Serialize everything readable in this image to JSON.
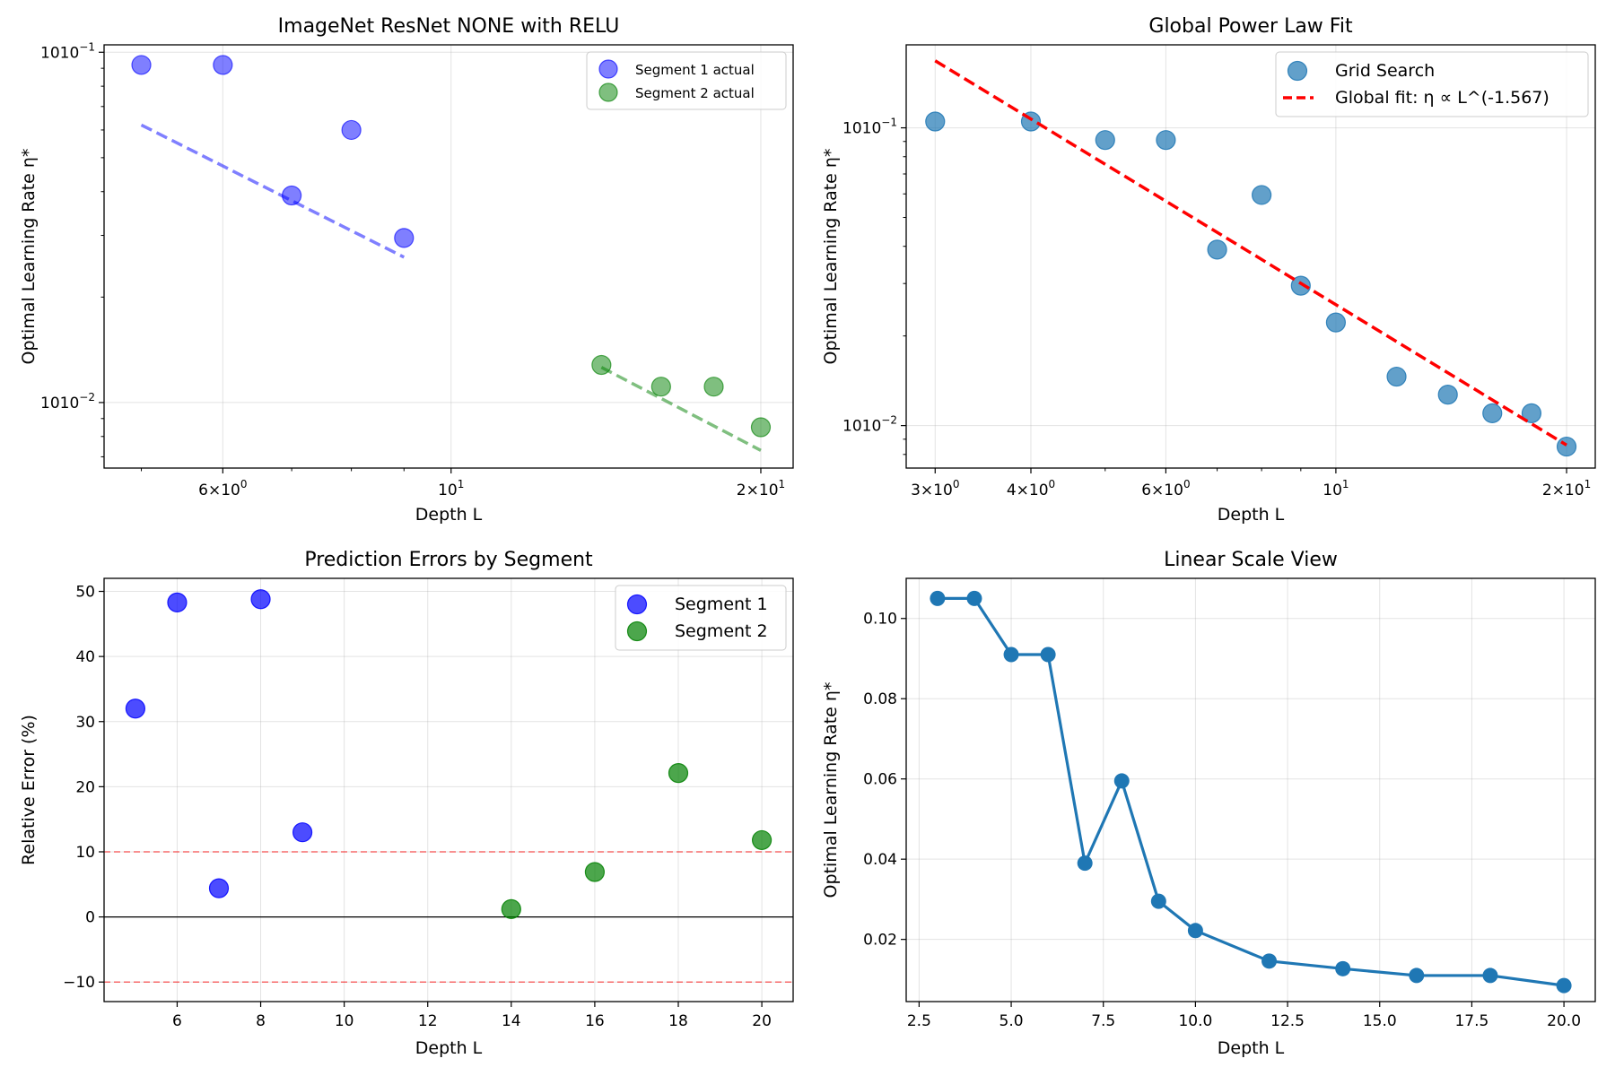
{
  "chart_data": [
    {
      "type": "scatter",
      "title": "ImageNet ResNet NONE with RELU",
      "xlabel": "Depth L",
      "ylabel": "Optimal Learning Rate η*",
      "xscale": "log",
      "yscale": "log",
      "xlim": [
        4.6,
        21.5
      ],
      "ylim": [
        0.0065,
        0.105
      ],
      "grid": true,
      "legend": "top-right",
      "xticks": [
        {
          "value": 6,
          "base": "6",
          "sym": "×",
          "exp_base": "10",
          "exp": "0"
        },
        {
          "value": 10,
          "base": "",
          "sym": "",
          "exp_base": "10",
          "exp": "1"
        },
        {
          "value": 20,
          "base": "2",
          "sym": "×",
          "exp_base": "10",
          "exp": "1"
        }
      ],
      "yticks": [
        {
          "value": 0.01,
          "base": "10",
          "exp": "−2"
        },
        {
          "value": 0.1,
          "base": "10",
          "exp": "−1"
        }
      ],
      "series": [
        {
          "name": "Segment 1 actual",
          "color": "#0000ff",
          "alpha": 0.5,
          "x": [
            5,
            6,
            7,
            8,
            9
          ],
          "y": [
            0.092,
            0.092,
            0.039,
            0.06,
            0.0295
          ],
          "fit": {
            "x": [
              5,
              9
            ],
            "y": [
              0.062,
              0.026
            ]
          }
        },
        {
          "name": "Segment 2 actual",
          "color": "#008000",
          "alpha": 0.5,
          "x": [
            14,
            16,
            18,
            20
          ],
          "y": [
            0.0128,
            0.0111,
            0.0111,
            0.0085
          ],
          "fit": {
            "x": [
              14,
              20
            ],
            "y": [
              0.0126,
              0.0073
            ]
          }
        }
      ]
    },
    {
      "type": "scatter",
      "title": "Global Power Law Fit",
      "xlabel": "Depth L",
      "ylabel": "Optimal Learning Rate η*",
      "xscale": "log",
      "yscale": "log",
      "xlim": [
        2.75,
        21.8
      ],
      "ylim": [
        0.0072,
        0.19
      ],
      "grid": true,
      "legend": "top-right",
      "xticks": [
        {
          "value": 3,
          "base": "3",
          "sym": "×",
          "exp_base": "10",
          "exp": "0"
        },
        {
          "value": 4,
          "base": "4",
          "sym": "×",
          "exp_base": "10",
          "exp": "0"
        },
        {
          "value": 6,
          "base": "6",
          "sym": "×",
          "exp_base": "10",
          "exp": "0"
        },
        {
          "value": 10,
          "base": "",
          "sym": "",
          "exp_base": "10",
          "exp": "1"
        },
        {
          "value": 20,
          "base": "2",
          "sym": "×",
          "exp_base": "10",
          "exp": "1"
        }
      ],
      "yticks": [
        {
          "value": 0.01,
          "base": "10",
          "exp": "−2"
        },
        {
          "value": 0.1,
          "base": "10",
          "exp": "−1"
        }
      ],
      "series": [
        {
          "name": "Grid Search",
          "color": "#1f77b4",
          "alpha": 0.7,
          "x": [
            3,
            4,
            5,
            6,
            7,
            8,
            9,
            10,
            12,
            14,
            16,
            18,
            20
          ],
          "y": [
            0.105,
            0.105,
            0.091,
            0.091,
            0.039,
            0.0595,
            0.0295,
            0.0222,
            0.0146,
            0.0127,
            0.011,
            0.011,
            0.0085
          ]
        }
      ],
      "fit_line": {
        "name": "Global fit: η ∝ L^(-1.567)",
        "color": "#ff0000",
        "x": [
          3,
          20
        ],
        "y": [
          0.168,
          0.0086
        ]
      }
    },
    {
      "type": "scatter",
      "title": "Prediction Errors by Segment",
      "xlabel": "Depth L",
      "ylabel": "Relative Error (%)",
      "xlim": [
        4.25,
        20.75
      ],
      "ylim": [
        -13,
        52
      ],
      "grid": true,
      "legend": "top-right",
      "xticks": [
        6,
        8,
        10,
        12,
        14,
        16,
        18,
        20
      ],
      "xtick_labels": [
        "6",
        "8",
        "10",
        "12",
        "14",
        "16",
        "18",
        "20"
      ],
      "yticks": [
        -10,
        0,
        10,
        20,
        30,
        40,
        50
      ],
      "ytick_labels": [
        "−10",
        "0",
        "10",
        "20",
        "30",
        "40",
        "50"
      ],
      "series": [
        {
          "name": "Segment 1",
          "color": "#0000ff",
          "alpha": 0.7,
          "x": [
            5,
            6,
            7,
            8,
            9
          ],
          "y": [
            32,
            48.3,
            4.4,
            48.8,
            13
          ]
        },
        {
          "name": "Segment 2",
          "color": "#008000",
          "alpha": 0.7,
          "x": [
            14,
            16,
            18,
            20
          ],
          "y": [
            1.2,
            6.9,
            22.1,
            11.8
          ]
        }
      ],
      "reference_lines": {
        "threshold": [
          10,
          -10
        ],
        "threshold_color": "#ff0000",
        "zero": 0
      }
    },
    {
      "type": "line",
      "title": "Linear Scale View",
      "xlabel": "Depth L",
      "ylabel": "Optimal Learning Rate η*",
      "xlim": [
        2.15,
        20.85
      ],
      "ylim": [
        0.0045,
        0.11
      ],
      "grid": true,
      "xticks": [
        2.5,
        5,
        7.5,
        10,
        12.5,
        15,
        17.5,
        20
      ],
      "xtick_labels": [
        "2.5",
        "5.0",
        "7.5",
        "10.0",
        "12.5",
        "15.0",
        "17.5",
        "20.0"
      ],
      "yticks": [
        0.02,
        0.04,
        0.06,
        0.08,
        0.1
      ],
      "ytick_labels": [
        "0.02",
        "0.04",
        "0.06",
        "0.08",
        "0.10"
      ],
      "series": [
        {
          "name": "Optimal LR",
          "color": "#1f77b4",
          "x": [
            3,
            4,
            5,
            6,
            7,
            8,
            9,
            10,
            12,
            14,
            16,
            18,
            20
          ],
          "y": [
            0.105,
            0.105,
            0.091,
            0.091,
            0.039,
            0.0595,
            0.0295,
            0.0222,
            0.0146,
            0.0127,
            0.011,
            0.011,
            0.0085
          ]
        }
      ]
    }
  ]
}
